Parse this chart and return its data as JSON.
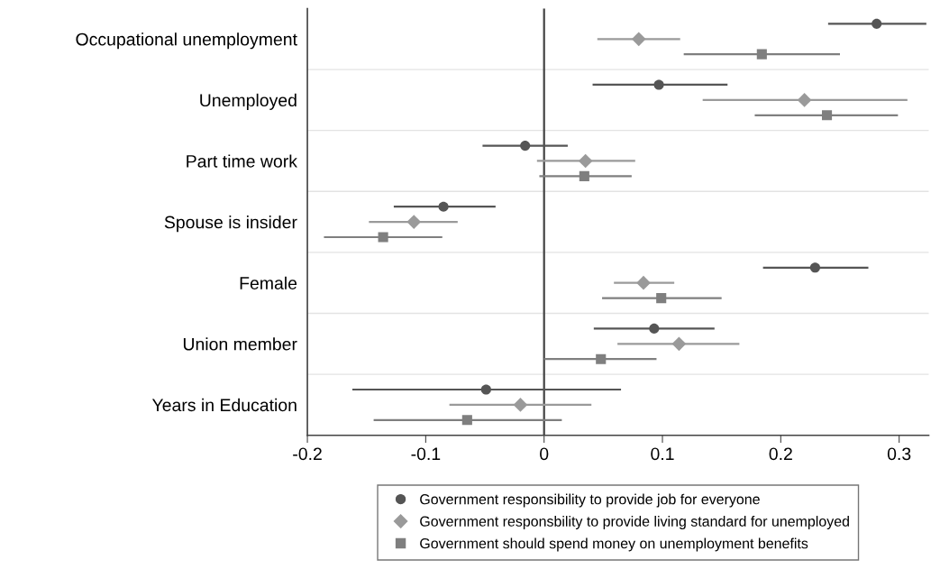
{
  "chart_data": {
    "type": "scatter",
    "orientation": "horizontal",
    "categories": [
      "Occupational unemployment",
      "Unemployed",
      "Part time work",
      "Spouse is insider",
      "Female",
      "Union member",
      "Years in Education"
    ],
    "series": [
      {
        "name": "Government responsibility to provide job for everyone",
        "color": "#555555",
        "marker": "circle",
        "values": [
          0.281,
          0.097,
          -0.016,
          -0.085,
          0.229,
          0.093,
          -0.049
        ],
        "errors": [
          [
            0.24,
            0.323
          ],
          [
            0.041,
            0.155
          ],
          [
            -0.052,
            0.02
          ],
          [
            -0.127,
            -0.041
          ],
          [
            0.185,
            0.274
          ],
          [
            0.042,
            0.144
          ],
          [
            -0.162,
            0.065
          ]
        ]
      },
      {
        "name": "Government responsbility to provide living standard for unemployed",
        "color": "#9a9a9a",
        "marker": "diamond",
        "values": [
          0.08,
          0.22,
          0.035,
          -0.11,
          0.084,
          0.114,
          -0.02
        ],
        "errors": [
          [
            0.045,
            0.115
          ],
          [
            0.134,
            0.307
          ],
          [
            -0.006,
            0.077
          ],
          [
            -0.148,
            -0.073
          ],
          [
            0.059,
            0.11
          ],
          [
            0.062,
            0.165
          ],
          [
            -0.08,
            0.04
          ]
        ]
      },
      {
        "name": "Government should spend money on unemployment benefits",
        "color": "#7f7f7f",
        "marker": "square",
        "values": [
          0.184,
          0.239,
          0.034,
          -0.136,
          0.099,
          0.048,
          -0.065
        ],
        "errors": [
          [
            0.118,
            0.25
          ],
          [
            0.178,
            0.299
          ],
          [
            -0.004,
            0.074
          ],
          [
            -0.186,
            -0.086
          ],
          [
            0.049,
            0.15
          ],
          [
            0.0,
            0.095
          ],
          [
            -0.144,
            0.015
          ]
        ]
      }
    ],
    "xlim": [
      -0.2,
      0.325
    ],
    "xticks": [
      -0.2,
      -0.1,
      0,
      0.1,
      0.2,
      0.3
    ],
    "ref_lines": [
      {
        "axis": "x",
        "value": 0,
        "color": "#444444"
      }
    ],
    "grid": "y",
    "legend": "bottom"
  }
}
